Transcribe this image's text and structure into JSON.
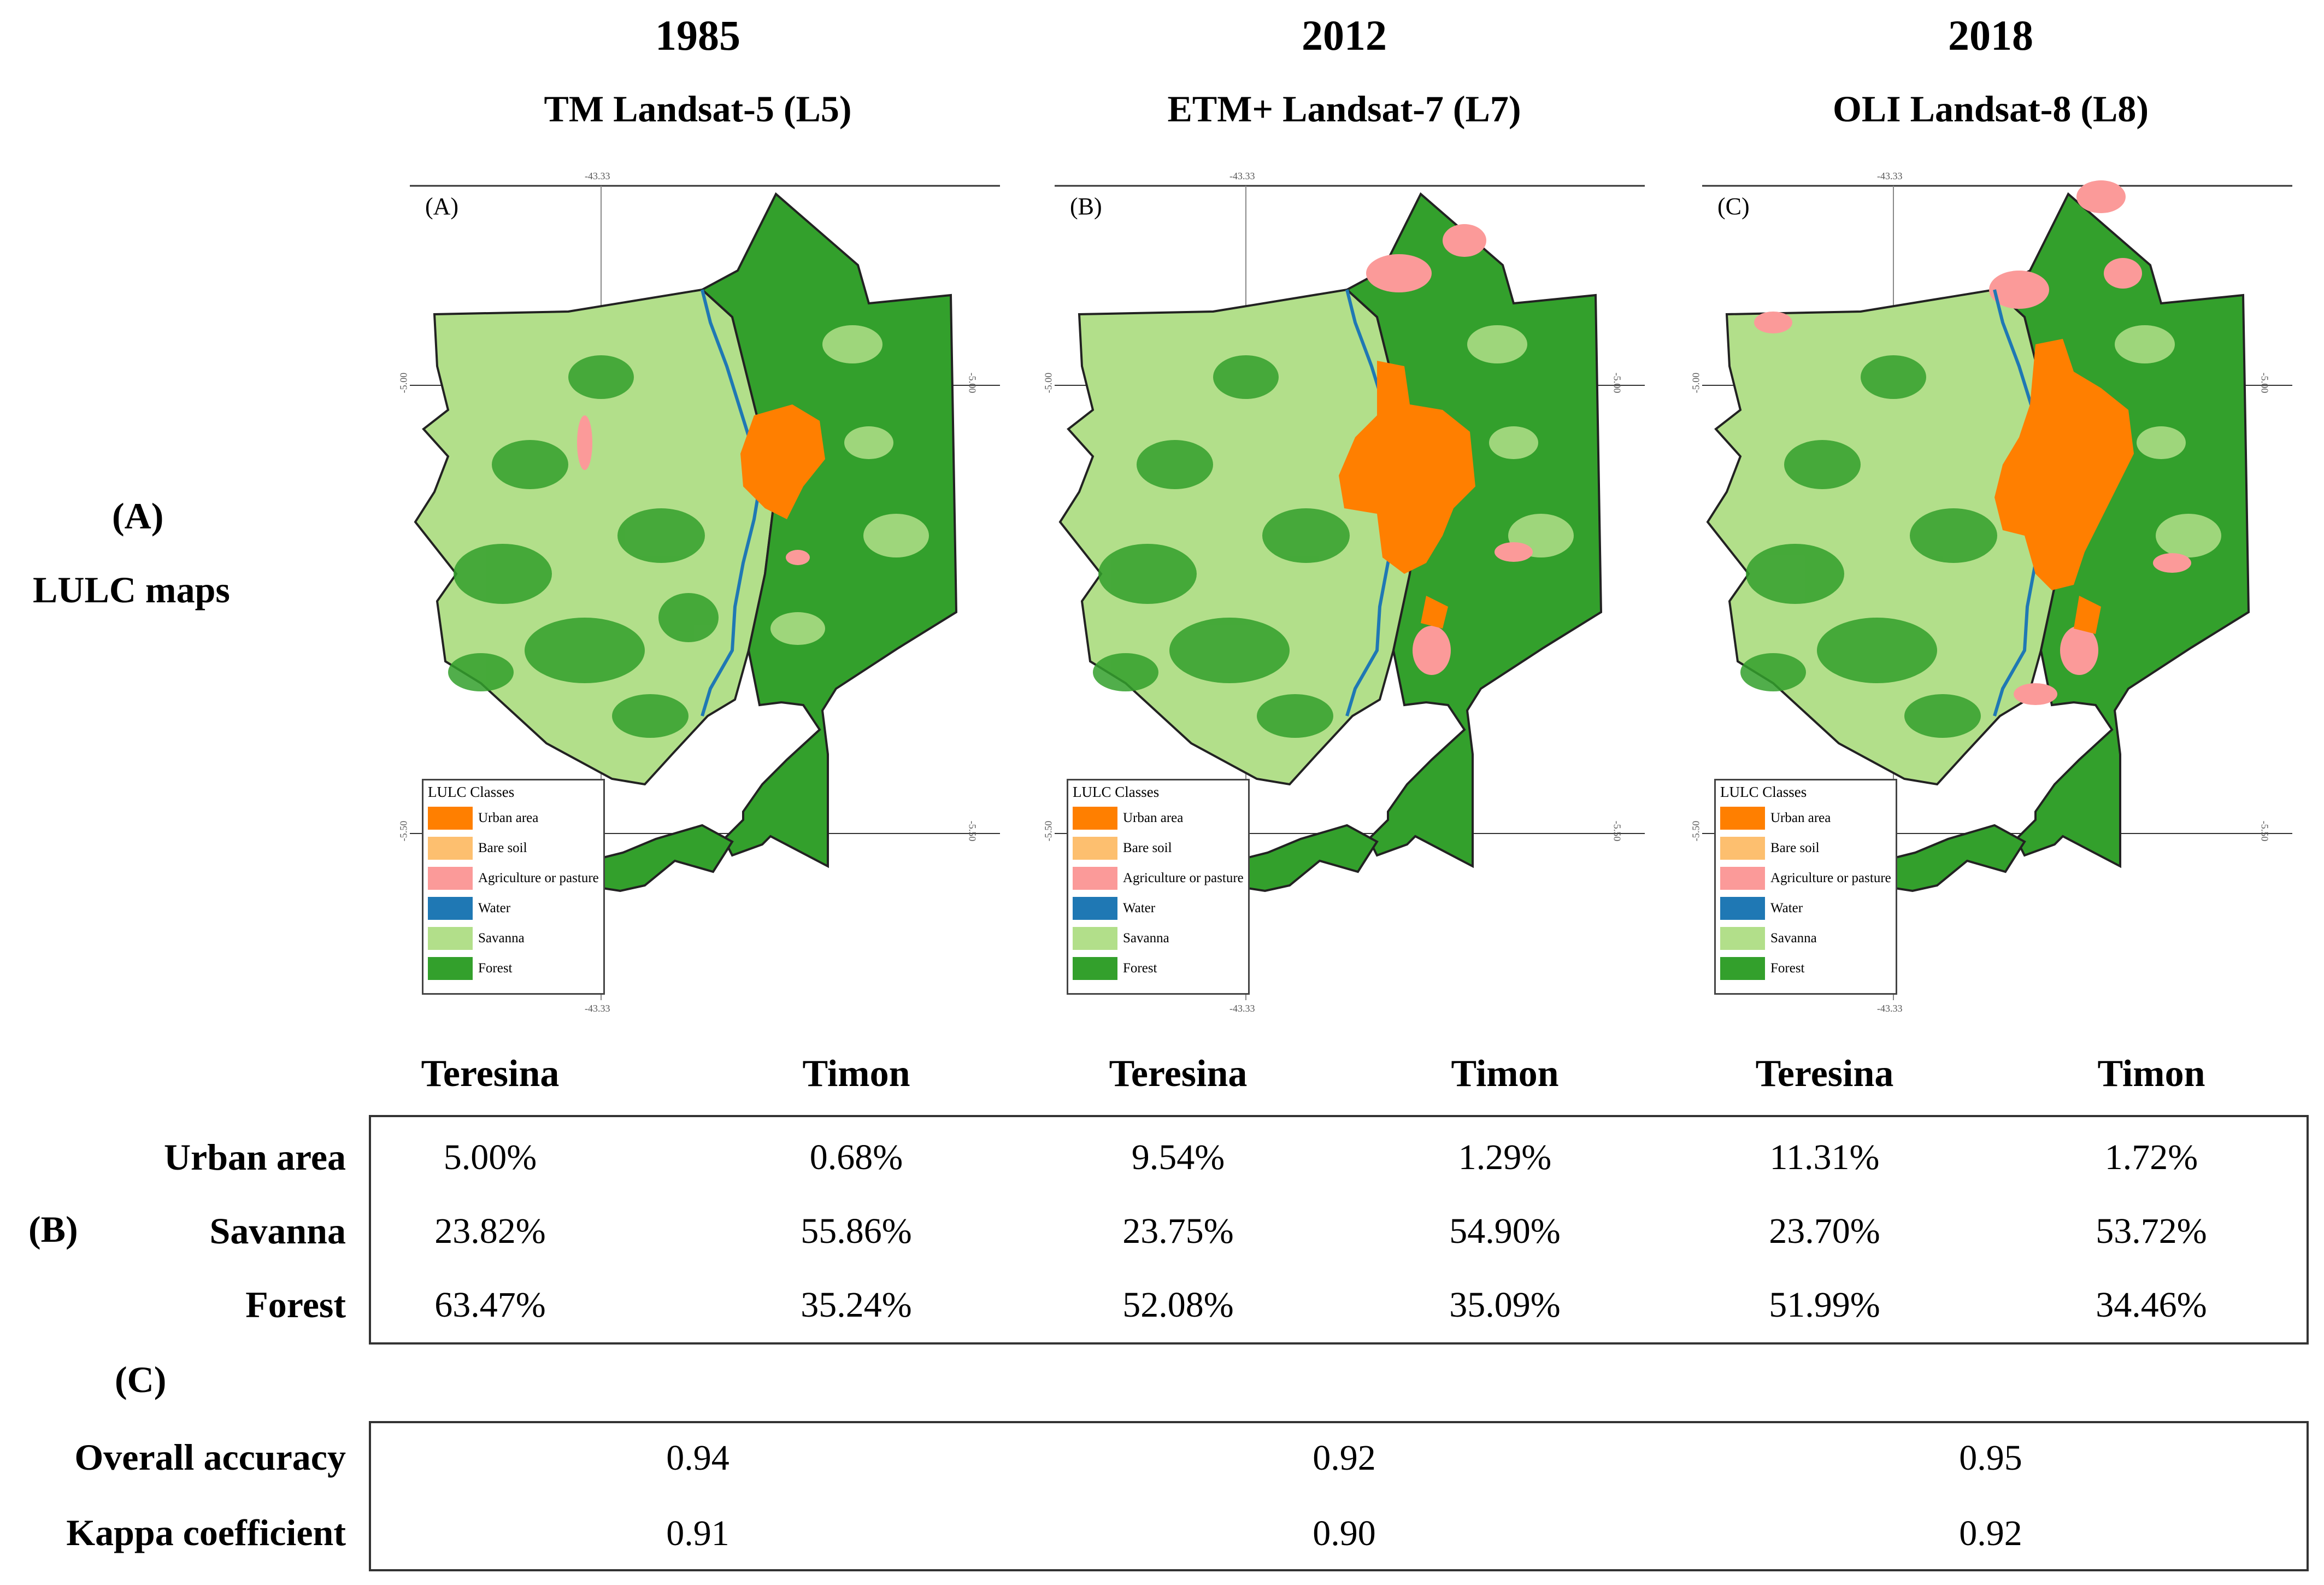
{
  "years": [
    {
      "year": "1985",
      "sensor": "TM Landsat-5 (L5)"
    },
    {
      "year": "2012",
      "sensor": "ETM+ Landsat-7 (L7)"
    },
    {
      "year": "2018",
      "sensor": "OLI Landsat-8 (L8)"
    }
  ],
  "side_labels": {
    "a_label": "(A)",
    "a_text": "LULC maps",
    "b_label": "(B)",
    "c_label": "(C)"
  },
  "maps": [
    {
      "panel": "(A)"
    },
    {
      "panel": "(B)"
    },
    {
      "panel": "(C)"
    }
  ],
  "map_coords": {
    "top_lon": "-43.33",
    "bottom_lon": "-43.33",
    "left_lat_top": "-5.00",
    "left_lat_bottom": "-5.50",
    "right_lat_top": "-5.00",
    "right_lat_bottom": "-5.50"
  },
  "legend": {
    "title": "LULC Classes",
    "items": [
      {
        "label": "Urban area",
        "color": "#ff7f00"
      },
      {
        "label": "Bare soil",
        "color": "#fdbf6f"
      },
      {
        "label": "Agriculture or pasture",
        "color": "#fb9a99"
      },
      {
        "label": "Water",
        "color": "#1f78b4"
      },
      {
        "label": "Savanna",
        "color": "#b2df8a"
      },
      {
        "label": "Forest",
        "color": "#33a02c"
      }
    ]
  },
  "table_b": {
    "column_headers": [
      "Teresina",
      "Timon",
      "Teresina",
      "Timon",
      "Teresina",
      "Timon"
    ],
    "rows": [
      {
        "label": "Urban area",
        "values": [
          "5.00%",
          "0.68%",
          "9.54%",
          "1.29%",
          "11.31%",
          "1.72%"
        ]
      },
      {
        "label": "Savanna",
        "values": [
          "23.82%",
          "55.86%",
          "23.75%",
          "54.90%",
          "23.70%",
          "53.72%"
        ]
      },
      {
        "label": "Forest",
        "values": [
          "63.47%",
          "35.24%",
          "52.08%",
          "35.09%",
          "51.99%",
          "34.46%"
        ]
      }
    ]
  },
  "table_c": {
    "rows": [
      {
        "label": "Overall accuracy",
        "values": [
          "0.94",
          "0.92",
          "0.95"
        ]
      },
      {
        "label": "Kappa coefficient",
        "values": [
          "0.91",
          "0.90",
          "0.92"
        ]
      }
    ]
  },
  "colors": {
    "urban": "#ff7f00",
    "savanna": "#b2df8a",
    "forest": "#33a02c",
    "agri": "#fb9a99",
    "water": "#1f78b4",
    "bare": "#fdbf6f"
  }
}
